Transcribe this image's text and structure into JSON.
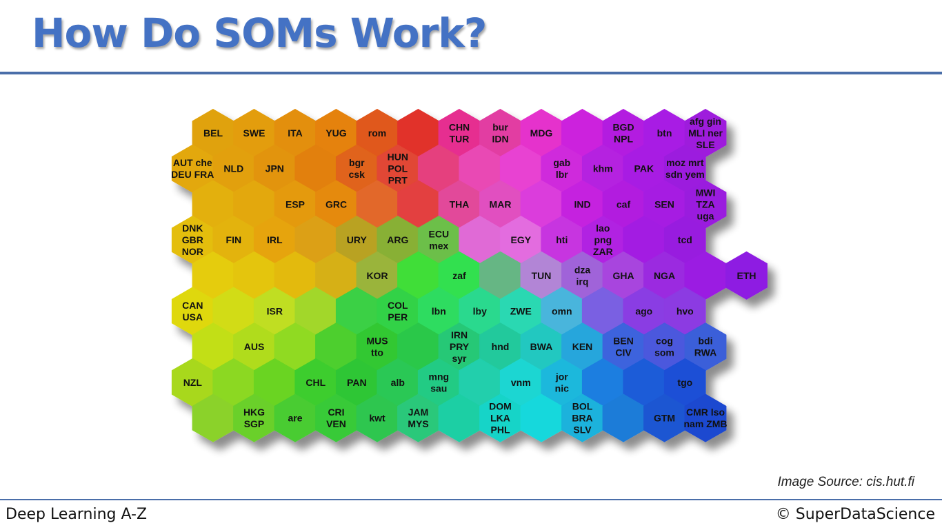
{
  "slide": {
    "title": "How Do SOMs Work?",
    "image_source": "Image Source: cis.hut.fi",
    "footer_left": "Deep Learning A-Z",
    "footer_right": "© SuperDataScience"
  },
  "som_map": {
    "rows": [
      [
        [
          "BEL"
        ],
        [
          "SWE"
        ],
        [
          "ITA"
        ],
        [
          "YUG"
        ],
        [
          "rom"
        ],
        [],
        [
          "CHN",
          "TUR"
        ],
        [
          "bur",
          "IDN"
        ],
        [
          "MDG"
        ],
        [],
        [
          "BGD",
          "NPL"
        ],
        [
          "btn"
        ],
        [
          "afg gin",
          "MLI ner",
          "SLE"
        ]
      ],
      [
        [
          "AUT che",
          "DEU FRA"
        ],
        [
          "NLD"
        ],
        [
          "JPN"
        ],
        [],
        [
          "bgr",
          "csk"
        ],
        [
          "HUN",
          "POL",
          "PRT"
        ],
        [],
        [],
        [],
        [
          "gab",
          "lbr"
        ],
        [
          "khm"
        ],
        [
          "PAK"
        ],
        [
          "moz mrt",
          "sdn yem"
        ]
      ],
      [
        [],
        [],
        [
          "ESP"
        ],
        [
          "GRC"
        ],
        [],
        [],
        [
          "THA"
        ],
        [
          "MAR"
        ],
        [],
        [
          "IND"
        ],
        [
          "caf"
        ],
        [
          "SEN"
        ],
        [
          "MWI",
          "TZA",
          "uga"
        ]
      ],
      [
        [
          "DNK",
          "GBR",
          "NOR"
        ],
        [
          "FIN"
        ],
        [
          "IRL"
        ],
        [],
        [
          "URY"
        ],
        [
          "ARG"
        ],
        [
          "ECU",
          "mex"
        ],
        [],
        [
          "EGY"
        ],
        [
          "hti"
        ],
        [
          "lao",
          "png",
          "ZAR"
        ],
        [],
        [
          "tcd"
        ]
      ],
      [
        [],
        [],
        [],
        [],
        [
          "KOR"
        ],
        [],
        [
          "zaf"
        ],
        [],
        [
          "TUN"
        ],
        [
          "dza",
          "irq"
        ],
        [
          "GHA"
        ],
        [
          "NGA"
        ],
        [],
        [
          "ETH"
        ]
      ],
      [
        [
          "CAN",
          "USA"
        ],
        [],
        [
          "ISR"
        ],
        [],
        [],
        [
          "COL",
          "PER"
        ],
        [
          "lbn"
        ],
        [
          "lby"
        ],
        [
          "ZWE"
        ],
        [
          "omn"
        ],
        [],
        [
          "ago"
        ],
        [
          "hvo"
        ]
      ],
      [
        [],
        [
          "AUS"
        ],
        [],
        [],
        [
          "MUS",
          "tto"
        ],
        [],
        [
          "IRN",
          "PRY",
          "syr"
        ],
        [
          "hnd"
        ],
        [
          "BWA"
        ],
        [
          "KEN"
        ],
        [
          "BEN",
          "CIV"
        ],
        [
          "cog",
          "som"
        ],
        [
          "bdi",
          "RWA"
        ]
      ],
      [
        [
          "NZL"
        ],
        [],
        [],
        [
          "CHL"
        ],
        [
          "PAN"
        ],
        [
          "alb"
        ],
        [
          "mng",
          "sau"
        ],
        [],
        [
          "vnm"
        ],
        [
          "jor",
          "nic"
        ],
        [],
        [],
        [
          "tgo"
        ]
      ],
      [
        [],
        [
          "HKG",
          "SGP"
        ],
        [
          "are"
        ],
        [
          "CRI",
          "VEN"
        ],
        [
          "kwt"
        ],
        [
          "JAM",
          "MYS"
        ],
        [],
        [
          "DOM",
          "LKA",
          "PHL"
        ],
        [],
        [
          "BOL",
          "BRA",
          "SLV"
        ],
        [],
        [
          "GTM"
        ],
        [
          "CMR lso",
          "nam ZMB"
        ]
      ]
    ],
    "colors": [
      [
        "#e0a20a",
        "#e39d08",
        "#e38f0a",
        "#e5820c",
        "#e0581a",
        "#e1332c",
        "#e62e90",
        "#e23ea2",
        "#e532cc",
        "#cc22dd",
        "#b31ee0",
        "#a81ce4",
        "#9e1cdc"
      ],
      [
        "#e3a80c",
        "#e2a00a",
        "#e2940c",
        "#e2800f",
        "#e0641a",
        "#e14634",
        "#e5407e",
        "#e94ab4",
        "#e842d2",
        "#cf2cdc",
        "#b521e0",
        "#a81ce3",
        "#9c1cde"
      ],
      [
        "#e3b00d",
        "#e3a80c",
        "#e49a0c",
        "#e58a0d",
        "#e2682c",
        "#e34040",
        "#e24a9a",
        "#e14fc0",
        "#db3ddc",
        "#c522df",
        "#b21fdf",
        "#a61ce2",
        "#9a1cde"
      ],
      [
        "#e4be0c",
        "#e3b30b",
        "#e6a40e",
        "#dca014",
        "#b9a224",
        "#88b034",
        "#6cbf4a",
        "#e06ad6",
        "#e36cdf",
        "#c736e0",
        "#b121e2",
        "#a31ce2",
        "#981cdf"
      ],
      [
        "#e5cc0d",
        "#e4c50d",
        "#e3ba10",
        "#d6b018",
        "#9ab43a",
        "#3fde38",
        "#32e050",
        "#66b684",
        "#b285d6",
        "#a064d9",
        "#a845de",
        "#9b2ae0",
        "#9b1de2",
        "#8e1ee2"
      ],
      [
        "#dfd80e",
        "#d2dc18",
        "#c0de20",
        "#a2d72a",
        "#3ad044",
        "#32d246",
        "#2edc60",
        "#2bd98e",
        "#2ad8b2",
        "#4ab5dc",
        "#7a60e2",
        "#8a3ee3",
        "#8c3ae2"
      ],
      [
        "#c2df18",
        "#b0dc1e",
        "#90da22",
        "#4dcf2d",
        "#32c832",
        "#2cc84a",
        "#26c876",
        "#22c99c",
        "#24c8c0",
        "#28a6dc",
        "#3c64dd",
        "#4b58dd",
        "#3a5ed9"
      ],
      [
        "#a8d81d",
        "#8cd821",
        "#6ad424",
        "#3ecd2e",
        "#2ec636",
        "#2bc854",
        "#22cb84",
        "#20cfac",
        "#1fd6d2",
        "#1eb8dc",
        "#1e7ee0",
        "#1e5cd8",
        "#1e4fd6"
      ],
      [
        "#8bd22a",
        "#6ad02a",
        "#48cc32",
        "#38ca38",
        "#2ec650",
        "#2ac87a",
        "#1fcfa4",
        "#18d4c8",
        "#16d8dc",
        "#1ab2dc",
        "#1f7bd8",
        "#1f56d2",
        "#1f48d0"
      ]
    ]
  }
}
